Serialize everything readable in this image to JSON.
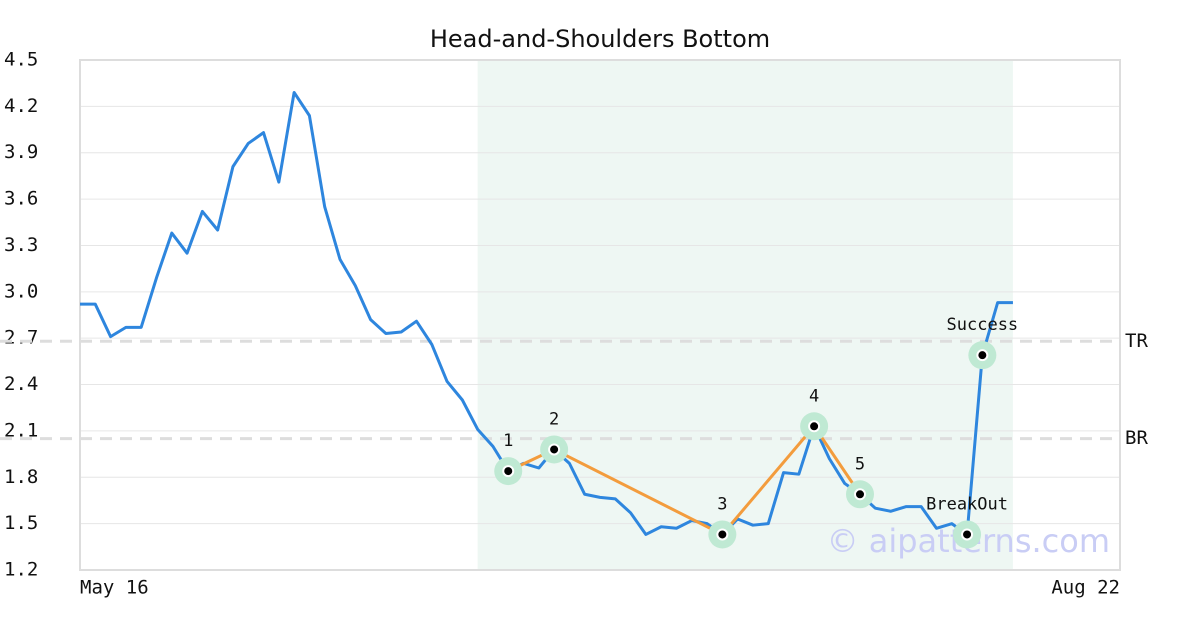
{
  "chart_data": {
    "type": "line",
    "title": "Head-and-Shoulders Bottom",
    "x": [
      0,
      1,
      2,
      3,
      4,
      5,
      6,
      7,
      8,
      9,
      10,
      11,
      12,
      13,
      14,
      15,
      16,
      17,
      18,
      19,
      20,
      21,
      22,
      23,
      24,
      25,
      26,
      27,
      28,
      29,
      30,
      31,
      32,
      33,
      34,
      35,
      36,
      37,
      38,
      39,
      40,
      41,
      42,
      43,
      44,
      45,
      46,
      47,
      48,
      49,
      50,
      51,
      52,
      53,
      54,
      55,
      56,
      57,
      58,
      59,
      60,
      61
    ],
    "series": [
      {
        "color": "#2e86de",
        "values": [
          2.92,
          2.92,
          2.71,
          2.77,
          2.77,
          3.09,
          3.38,
          3.25,
          3.52,
          3.4,
          3.81,
          3.96,
          4.03,
          3.71,
          4.29,
          4.14,
          3.55,
          3.21,
          3.04,
          2.82,
          2.73,
          2.74,
          2.81,
          2.66,
          2.42,
          2.3,
          2.11,
          2.0,
          1.84,
          1.89,
          1.86,
          1.98,
          1.89,
          1.69,
          1.67,
          1.66,
          1.57,
          1.43,
          1.48,
          1.47,
          1.52,
          1.5,
          1.43,
          1.53,
          1.49,
          1.5,
          1.83,
          1.82,
          2.13,
          1.92,
          1.76,
          1.69,
          1.6,
          1.58,
          1.61,
          1.61,
          1.47,
          1.5,
          1.43,
          2.59,
          2.93,
          2.93
        ]
      }
    ],
    "pattern": {
      "color": "#f39c3d",
      "x": [
        28,
        31,
        42,
        48,
        51
      ],
      "values": [
        1.84,
        1.98,
        1.43,
        2.13,
        1.69
      ],
      "labels": [
        "1",
        "2",
        "3",
        "4",
        "5"
      ]
    },
    "events": {
      "x": [
        58,
        59
      ],
      "values": [
        1.43,
        2.59
      ],
      "labels": [
        "BreakOut",
        "Success"
      ]
    },
    "marker_color": "#bfe9d3",
    "hlines": [
      {
        "label": "TR",
        "value": 2.68
      },
      {
        "label": "BR",
        "value": 2.05
      }
    ],
    "highlight": {
      "xlim": [
        26,
        61
      ],
      "color": "#eef7f3"
    },
    "watermark": "© aipatterns.com",
    "xlim": [
      0,
      68
    ],
    "xticks": [
      {
        "value": 0,
        "label": "May 16"
      },
      {
        "value": 68,
        "label": "Aug 22"
      }
    ],
    "ylim": [
      1.2,
      4.5
    ],
    "yticks": [
      1.2,
      1.5,
      1.8,
      2.1,
      2.4,
      2.7,
      {
        "value": 3,
        "label": "3.0"
      },
      3.3,
      3.6,
      3.9,
      4.2,
      4.5
    ],
    "grid": true
  }
}
